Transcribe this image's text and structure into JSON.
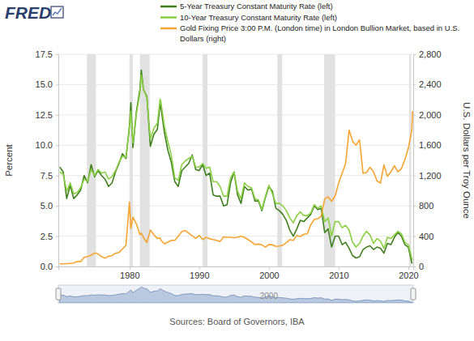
{
  "chart_data": {
    "type": "line",
    "logo": "FRED",
    "source": "Sources: Board of Governors, IBA",
    "ylabel": "Percent",
    "y2label": "U.S. Dollars per Troy Ounce",
    "legend": "top",
    "grid": true,
    "xlim": [
      1969.8,
      2020.7
    ],
    "xticks": [
      1980,
      1990,
      2000,
      2010,
      2020
    ],
    "ylim": [
      0,
      17.5
    ],
    "yticks": [
      {
        "value": 0,
        "label": "0.0"
      },
      2.5,
      {
        "value": 5,
        "label": "5.0"
      },
      7.5,
      {
        "value": 10,
        "label": "10.0"
      },
      12.5,
      {
        "value": 15,
        "label": "15.0"
      },
      17.5
    ],
    "y2lim": [
      0,
      2800
    ],
    "y2ticks": [
      0,
      400,
      800,
      {
        "value": 1200,
        "label": "1,200"
      },
      {
        "value": 1600,
        "label": "1,600"
      },
      {
        "value": 2000,
        "label": "2,000"
      },
      {
        "value": 2400,
        "label": "2,400"
      },
      {
        "value": 2800,
        "label": "2,800"
      }
    ],
    "navigator_xticks": [
      2000
    ],
    "recessions": [
      [
        1973.9,
        1975.2
      ],
      [
        1980.0,
        1980.5
      ],
      [
        1981.5,
        1982.9
      ],
      [
        1990.5,
        1991.2
      ],
      [
        2001.2,
        2001.9
      ],
      [
        2007.9,
        2009.5
      ],
      [
        2020.1,
        2020.4
      ]
    ],
    "x": [
      1970,
      1970.5,
      1971,
      1971.5,
      1972,
      1972.5,
      1973,
      1973.5,
      1974,
      1974.5,
      1975,
      1975.5,
      1976,
      1976.5,
      1977,
      1977.5,
      1978,
      1978.5,
      1979,
      1979.5,
      1980,
      1980.2,
      1980.5,
      1981,
      1981.5,
      1981.7,
      1982,
      1982.5,
      1983,
      1983.5,
      1984,
      1984.4,
      1984.5,
      1985,
      1985.5,
      1986,
      1986.5,
      1987,
      1987.5,
      1988,
      1988.5,
      1989,
      1989.5,
      1990,
      1990.5,
      1991,
      1991.5,
      1992,
      1992.5,
      1993,
      1993.5,
      1994,
      1994.5,
      1995,
      1995.5,
      1996,
      1996.5,
      1997,
      1997.5,
      1998,
      1998.5,
      1999,
      1999.5,
      2000,
      2000.5,
      2001,
      2001.5,
      2002,
      2002.5,
      2003,
      2003.5,
      2004,
      2004.5,
      2005,
      2005.5,
      2006,
      2006.5,
      2007,
      2007.5,
      2008,
      2008.5,
      2009,
      2009.5,
      2010,
      2010.5,
      2011,
      2011.5,
      2012,
      2012.5,
      2013,
      2013.5,
      2014,
      2014.5,
      2015,
      2015.5,
      2016,
      2016.5,
      2017,
      2017.5,
      2018,
      2018.5,
      2019,
      2019.5,
      2020,
      2020.5,
      2020.6
    ],
    "series": [
      {
        "name": "5-Year Treasury Constant Maturity Rate (left)",
        "color": "#3f7f1d",
        "axis": "y",
        "values": [
          8.2,
          7.8,
          5.6,
          6.7,
          5.6,
          5.9,
          6.3,
          7.5,
          6.9,
          8.4,
          7.4,
          7.9,
          7.5,
          7.2,
          6.6,
          6.9,
          7.8,
          8.5,
          9.3,
          8.9,
          11.6,
          13.5,
          9.8,
          12.8,
          14.6,
          16.2,
          14.6,
          14.0,
          9.9,
          10.9,
          11.3,
          13.4,
          13.2,
          11.1,
          9.6,
          8.6,
          7.0,
          6.6,
          7.9,
          8.2,
          8.5,
          9.2,
          8.0,
          7.9,
          8.4,
          7.5,
          7.7,
          5.9,
          5.8,
          5.8,
          5.0,
          5.1,
          6.9,
          7.8,
          5.9,
          5.2,
          6.6,
          6.3,
          6.4,
          5.4,
          5.4,
          4.6,
          5.7,
          6.6,
          6.2,
          4.8,
          4.6,
          4.3,
          3.8,
          3.0,
          2.5,
          3.1,
          3.8,
          3.7,
          4.0,
          4.3,
          5.0,
          4.7,
          4.8,
          2.8,
          3.1,
          1.6,
          2.5,
          2.5,
          1.8,
          2.0,
          1.5,
          0.9,
          0.7,
          0.8,
          1.4,
          1.6,
          1.7,
          1.4,
          1.6,
          1.5,
          1.1,
          1.9,
          1.8,
          2.4,
          2.8,
          2.5,
          1.8,
          1.6,
          0.3,
          0.27
        ]
      },
      {
        "name": "10-Year Treasury Constant Maturity Rate (left)",
        "color": "#8ad043",
        "axis": "y",
        "values": [
          7.8,
          7.6,
          6.2,
          6.9,
          6.0,
          6.1,
          6.5,
          7.2,
          7.0,
          8.0,
          7.5,
          8.0,
          7.7,
          7.8,
          7.2,
          7.4,
          7.9,
          8.6,
          9.1,
          9.0,
          11.5,
          12.8,
          10.2,
          12.6,
          14.3,
          15.8,
          14.6,
          13.9,
          10.5,
          11.4,
          11.8,
          13.8,
          13.6,
          11.6,
          10.3,
          9.2,
          7.3,
          7.1,
          8.4,
          8.7,
          8.9,
          9.1,
          8.2,
          8.2,
          8.5,
          8.1,
          8.2,
          7.0,
          7.0,
          6.6,
          5.8,
          5.8,
          7.3,
          7.8,
          6.2,
          5.6,
          6.9,
          6.6,
          6.5,
          5.6,
          5.5,
          4.7,
          5.8,
          6.7,
          6.0,
          5.2,
          5.2,
          5.0,
          4.6,
          4.0,
          3.6,
          4.2,
          4.5,
          4.2,
          4.2,
          4.4,
          5.1,
          4.8,
          5.0,
          3.7,
          4.0,
          2.5,
          3.7,
          3.7,
          3.2,
          3.4,
          3.0,
          2.0,
          1.6,
          1.9,
          2.5,
          2.9,
          2.6,
          1.9,
          2.3,
          2.1,
          1.5,
          2.4,
          2.3,
          2.6,
          2.9,
          2.7,
          2.0,
          1.8,
          0.65,
          0.55
        ]
      },
      {
        "name": "Gold Fixing Price 3:00 P.M. (London time) in London Bullion Market, based in U.S. Dollars (right)",
        "color": "#f7a431",
        "axis": "y2",
        "values": [
          35,
          35,
          38,
          41,
          46,
          65,
          65,
          120,
          130,
          150,
          178,
          165,
          130,
          110,
          135,
          145,
          175,
          185,
          230,
          280,
          850,
          500,
          650,
          560,
          420,
          440,
          385,
          315,
          480,
          420,
          370,
          380,
          350,
          300,
          320,
          345,
          345,
          400,
          460,
          475,
          440,
          405,
          370,
          410,
          355,
          385,
          365,
          355,
          345,
          330,
          390,
          385,
          385,
          380,
          385,
          400,
          385,
          355,
          325,
          290,
          295,
          285,
          255,
          290,
          285,
          265,
          270,
          280,
          315,
          355,
          345,
          410,
          395,
          425,
          430,
          550,
          620,
          630,
          665,
          890,
          920,
          860,
          930,
          1100,
          1230,
          1360,
          1800,
          1650,
          1600,
          1670,
          1230,
          1240,
          1310,
          1250,
          1130,
          1100,
          1340,
          1190,
          1250,
          1330,
          1250,
          1290,
          1410,
          1560,
          1800,
          2050
        ]
      }
    ]
  }
}
